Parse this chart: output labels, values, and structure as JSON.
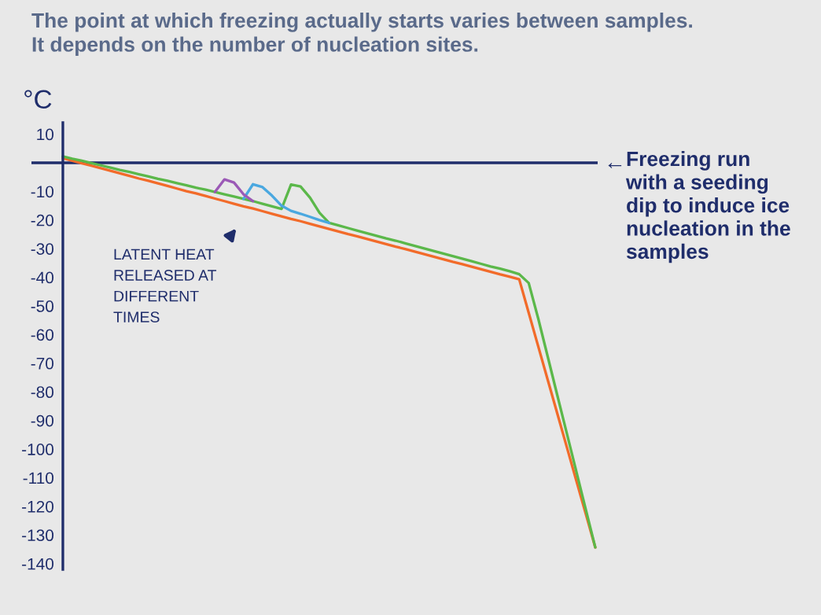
{
  "chart_data": {
    "type": "line",
    "title": "The point at which freezing actually starts varies between samples.\nIt depends on the number of nucleation sites.",
    "ylabel": "°C",
    "categories": [
      null,
      null,
      null,
      null,
      null,
      null,
      null,
      null,
      null,
      null,
      null,
      null,
      null,
      null,
      null,
      null,
      null,
      null,
      null,
      null,
      null,
      null,
      null,
      null,
      null,
      null,
      null,
      null,
      null,
      null,
      null,
      null,
      null,
      null,
      null,
      null,
      null,
      null,
      null,
      null,
      null,
      null,
      null,
      null,
      null,
      null,
      null,
      null,
      null,
      null,
      null,
      null,
      null,
      null,
      null,
      null,
      null
    ],
    "ylim": [
      -142,
      14
    ],
    "yticks": [
      10,
      -10,
      -20,
      -30,
      -40,
      -50,
      -60,
      -70,
      -80,
      -90,
      -100,
      -110,
      -120,
      -130,
      -140
    ],
    "tick_labels": "y",
    "grid": false,
    "marker": "none",
    "line_style": "solid",
    "ref_lines": [
      {
        "axis": "y",
        "value": 0,
        "label": null,
        "color": "#1f2d6b"
      }
    ],
    "series": [
      {
        "color": "#f26b2a",
        "values": [
          1.6,
          0.7,
          -0.2,
          -1.0,
          -1.9,
          -2.8,
          -3.7,
          -4.6,
          -5.5,
          -6.3,
          -7.2,
          -8.1,
          -9.0,
          -9.9,
          -10.7,
          -11.6,
          -12.5,
          -13.4,
          -14.3,
          -15.2,
          -16.0,
          -16.9,
          -17.8,
          -18.7,
          -19.6,
          -20.4,
          -21.3,
          -22.2,
          -23.1,
          -24.0,
          -24.9,
          -25.7,
          -26.6,
          -27.5,
          -28.4,
          -29.3,
          -30.1,
          -31.0,
          -31.9,
          -32.8,
          -33.7,
          -34.6,
          -35.4,
          -36.3,
          -37.2,
          -38.1,
          -39.0,
          -39.8,
          -40.7,
          -52.4,
          -64.1,
          -75.8,
          -87.5,
          -99.2,
          -110.9,
          -122.6,
          -134.3
        ]
      },
      {
        "color": "#5bb84a",
        "values": [
          2.2,
          1.4,
          0.7,
          -0.1,
          -0.9,
          -1.7,
          -2.5,
          -3.2,
          -4.0,
          -4.8,
          -5.6,
          -6.3,
          -7.1,
          -7.9,
          -8.7,
          -9.4,
          -10.2,
          -11.0,
          -11.8,
          -12.6,
          -13.4,
          -14.3,
          -15.2,
          -16.1,
          -7.6,
          -8.3,
          -12.2,
          -17.5,
          -21.0,
          -21.9,
          -22.8,
          -23.7,
          -24.6,
          -25.5,
          -26.4,
          -27.2,
          -28.1,
          -29.0,
          -29.9,
          -30.8,
          -31.7,
          -32.6,
          -33.5,
          -34.4,
          -35.3,
          -36.2,
          -37.0,
          -37.9,
          -38.9,
          -42.0,
          -54.4,
          -67.7,
          -81.1,
          -94.4,
          -107.7,
          -121.0,
          -134.3
        ]
      },
      {
        "color": "#4aa8e0",
        "values": [
          null,
          null,
          null,
          null,
          null,
          null,
          null,
          null,
          null,
          null,
          null,
          null,
          null,
          null,
          null,
          null,
          null,
          null,
          null,
          -12.6,
          -7.5,
          -8.5,
          -11.5,
          -15.0,
          -16.8,
          -17.8,
          -18.9,
          -20.0,
          -21.0,
          null,
          null,
          null,
          null,
          null,
          null,
          null,
          null,
          null,
          null,
          null,
          null,
          null,
          null,
          null,
          null,
          null,
          null,
          null,
          null,
          null,
          null,
          null,
          null,
          null,
          null,
          null,
          null
        ]
      },
      {
        "color": "#9b59b6",
        "values": [
          null,
          null,
          null,
          null,
          null,
          null,
          null,
          null,
          null,
          null,
          null,
          null,
          null,
          null,
          null,
          null,
          -10.2,
          -5.8,
          -6.9,
          -11.0,
          -13.4,
          null,
          null,
          null,
          null,
          null,
          null,
          null,
          null,
          null,
          null,
          null,
          null,
          null,
          null,
          null,
          null,
          null,
          null,
          null,
          null,
          null,
          null,
          null,
          null,
          null,
          null,
          null,
          null,
          null,
          null,
          null,
          null,
          null,
          null,
          null,
          null
        ]
      }
    ],
    "annotations": [
      "LATENT HEAT\nRELEASED AT\nDIFFERENT\nTIMES",
      "←",
      "Freezing run\nwith a seeding\ndip to induce ice\nnucleation in the\nsamples"
    ]
  }
}
